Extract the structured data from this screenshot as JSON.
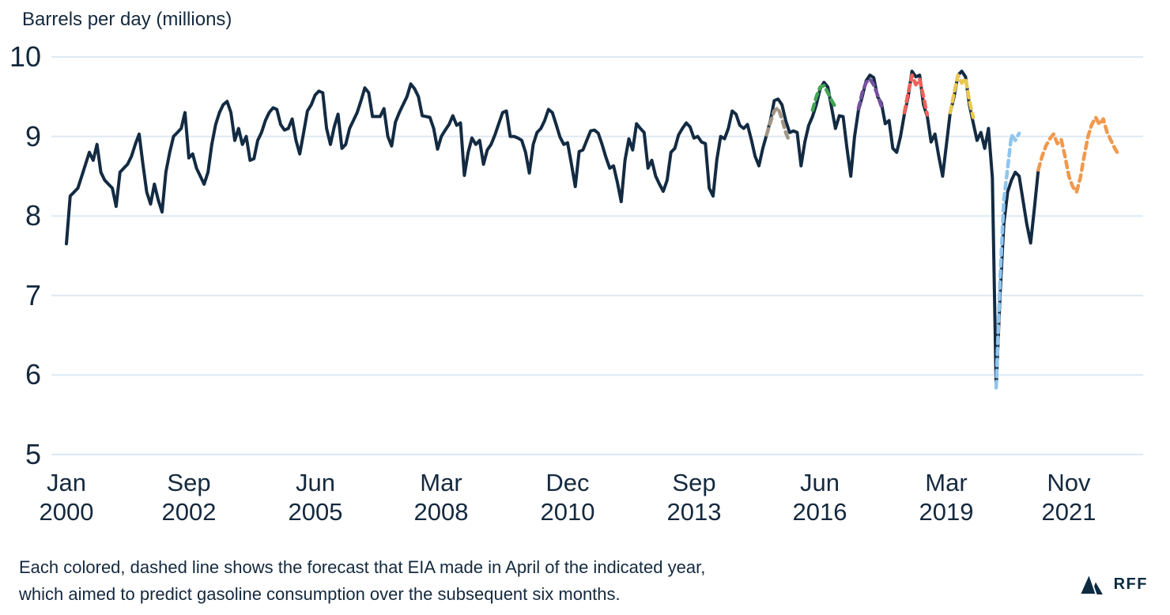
{
  "header": {
    "title": "Barrels per day (millions)"
  },
  "footer": {
    "caption_line1": "Each colored, dashed line shows the forecast that EIA made in April of the indicated year,",
    "caption_line2": "which aimed to predict gasoline consumption over the subsequent six months.",
    "logo_text": "RFF"
  },
  "colors": {
    "background": "#ffffff",
    "text": "#14293e",
    "gridline": "#dde9f3",
    "actual_line": "#132b42",
    "logo_navy": "#0c2b40"
  },
  "chart_data": {
    "type": "line",
    "title": "Barrels per day (millions)",
    "ylabel": "Barrels per day (millions)",
    "xlabel": "",
    "ylim": [
      5,
      10
    ],
    "y_ticks": [
      5,
      6,
      7,
      8,
      9,
      10
    ],
    "grid": "horizontal-only",
    "x_start": "2000-01",
    "x_tick_month_indices": [
      0,
      32,
      65,
      98,
      131,
      164,
      197,
      230,
      262
    ],
    "x_tick_labels": [
      {
        "month": "Jan",
        "year": "2000"
      },
      {
        "month": "Sep",
        "year": "2002"
      },
      {
        "month": "Jun",
        "year": "2005"
      },
      {
        "month": "Mar",
        "year": "2008"
      },
      {
        "month": "Dec",
        "year": "2010"
      },
      {
        "month": "Sep",
        "year": "2013"
      },
      {
        "month": "Jun",
        "year": "2016"
      },
      {
        "month": "Mar",
        "year": "2019"
      },
      {
        "month": "Nov",
        "year": "2021"
      }
    ],
    "actual": {
      "name": "Actual gasoline consumption",
      "color": "#132b42",
      "start_month_index": 0,
      "start_label": "Jan 2000",
      "end_label": "Mar 2021",
      "values": [
        7.65,
        8.25,
        8.3,
        8.35,
        8.5,
        8.65,
        8.8,
        8.7,
        8.9,
        8.55,
        8.45,
        8.4,
        8.35,
        8.12,
        8.55,
        8.6,
        8.65,
        8.75,
        8.9,
        9.03,
        8.65,
        8.3,
        8.15,
        8.4,
        8.2,
        8.05,
        8.55,
        8.8,
        9.0,
        9.05,
        9.1,
        9.3,
        8.73,
        8.78,
        8.6,
        8.5,
        8.4,
        8.55,
        8.9,
        9.15,
        9.3,
        9.4,
        9.44,
        9.3,
        8.95,
        9.1,
        8.9,
        9.0,
        8.7,
        8.72,
        8.95,
        9.05,
        9.2,
        9.3,
        9.36,
        9.34,
        9.15,
        9.08,
        9.1,
        9.22,
        8.95,
        8.78,
        9.05,
        9.32,
        9.4,
        9.52,
        9.57,
        9.55,
        9.1,
        8.9,
        9.12,
        9.28,
        8.85,
        8.9,
        9.1,
        9.2,
        9.3,
        9.45,
        9.61,
        9.55,
        9.25,
        9.25,
        9.25,
        9.35,
        9.0,
        8.88,
        9.18,
        9.3,
        9.4,
        9.5,
        9.66,
        9.6,
        9.5,
        9.26,
        9.25,
        9.24,
        9.1,
        8.84,
        9.0,
        9.08,
        9.15,
        9.26,
        9.14,
        9.17,
        8.51,
        8.8,
        8.98,
        8.9,
        8.95,
        8.65,
        8.83,
        8.9,
        9.02,
        9.16,
        9.3,
        9.32,
        9.0,
        9.0,
        8.98,
        8.95,
        8.8,
        8.54,
        8.9,
        9.05,
        9.1,
        9.2,
        9.34,
        9.3,
        9.15,
        8.99,
        8.9,
        8.92,
        8.65,
        8.37,
        8.81,
        8.83,
        8.95,
        9.07,
        9.08,
        9.04,
        8.9,
        8.74,
        8.6,
        8.63,
        8.42,
        8.18,
        8.7,
        8.97,
        8.83,
        9.16,
        9.1,
        9.05,
        8.6,
        8.7,
        8.5,
        8.4,
        8.31,
        8.45,
        8.8,
        8.85,
        9.02,
        9.1,
        9.17,
        9.12,
        8.98,
        9.0,
        8.93,
        8.91,
        8.35,
        8.25,
        8.71,
        9.0,
        8.97,
        9.1,
        9.32,
        9.28,
        9.14,
        9.1,
        9.15,
        8.96,
        8.75,
        8.63,
        8.85,
        9.02,
        9.2,
        9.45,
        9.47,
        9.4,
        9.2,
        9.05,
        9.07,
        9.05,
        8.63,
        8.93,
        9.14,
        9.25,
        9.4,
        9.6,
        9.68,
        9.62,
        9.36,
        9.1,
        9.26,
        9.25,
        8.85,
        8.5,
        9.0,
        9.33,
        9.5,
        9.7,
        9.77,
        9.74,
        9.5,
        9.42,
        9.16,
        9.2,
        8.85,
        8.8,
        9.0,
        9.28,
        9.5,
        9.82,
        9.75,
        9.77,
        9.4,
        9.25,
        8.93,
        9.03,
        8.75,
        8.5,
        8.9,
        9.3,
        9.5,
        9.77,
        9.82,
        9.75,
        9.4,
        9.17,
        8.95,
        9.05,
        8.85,
        9.1,
        8.48,
        5.84,
        7.0,
        7.9,
        8.3,
        8.45,
        8.55,
        8.5,
        8.2,
        7.9,
        7.66,
        8.1,
        8.58
      ]
    },
    "forecasts": [
      {
        "name": "April 2015 EIA forecast",
        "year": 2015,
        "color": "#a39585",
        "start_month_index": 183,
        "values": [
          9.02,
          9.18,
          9.32,
          9.36,
          9.22,
          9.05,
          8.93
        ]
      },
      {
        "name": "April 2016 EIA forecast",
        "year": 2016,
        "color": "#43a554",
        "start_month_index": 195,
        "values": [
          9.33,
          9.5,
          9.62,
          9.64,
          9.55,
          9.45,
          9.37
        ]
      },
      {
        "name": "April 2017 EIA forecast",
        "year": 2017,
        "color": "#75519f",
        "start_month_index": 207,
        "values": [
          9.35,
          9.55,
          9.68,
          9.72,
          9.65,
          9.52,
          9.38
        ]
      },
      {
        "name": "April 2018 EIA forecast",
        "year": 2018,
        "color": "#f2605a",
        "start_month_index": 219,
        "values": [
          9.3,
          9.55,
          9.77,
          9.65,
          9.72,
          9.5,
          9.27
        ]
      },
      {
        "name": "April 2019 EIA forecast",
        "year": 2019,
        "color": "#e9c84e",
        "start_month_index": 231,
        "values": [
          9.3,
          9.55,
          9.77,
          9.67,
          9.73,
          9.45,
          9.24
        ]
      },
      {
        "name": "April 2020 EIA forecast",
        "year": 2020,
        "color": "#8fc5ee",
        "start_month_index": 243,
        "values": [
          5.84,
          7.2,
          8.2,
          8.6,
          9.02,
          8.95,
          9.04
        ]
      },
      {
        "name": "April 2021 EIA forecast",
        "year": 2021,
        "color": "#f0994d",
        "start_month_index": 254,
        "values": [
          8.58,
          8.75,
          8.88,
          8.97,
          9.03,
          8.91,
          8.96,
          8.75,
          8.5,
          8.37,
          8.3,
          8.48,
          8.75,
          9.0,
          9.15,
          9.24,
          9.15,
          9.22,
          9.05,
          8.95,
          8.85,
          8.77
        ]
      }
    ]
  }
}
